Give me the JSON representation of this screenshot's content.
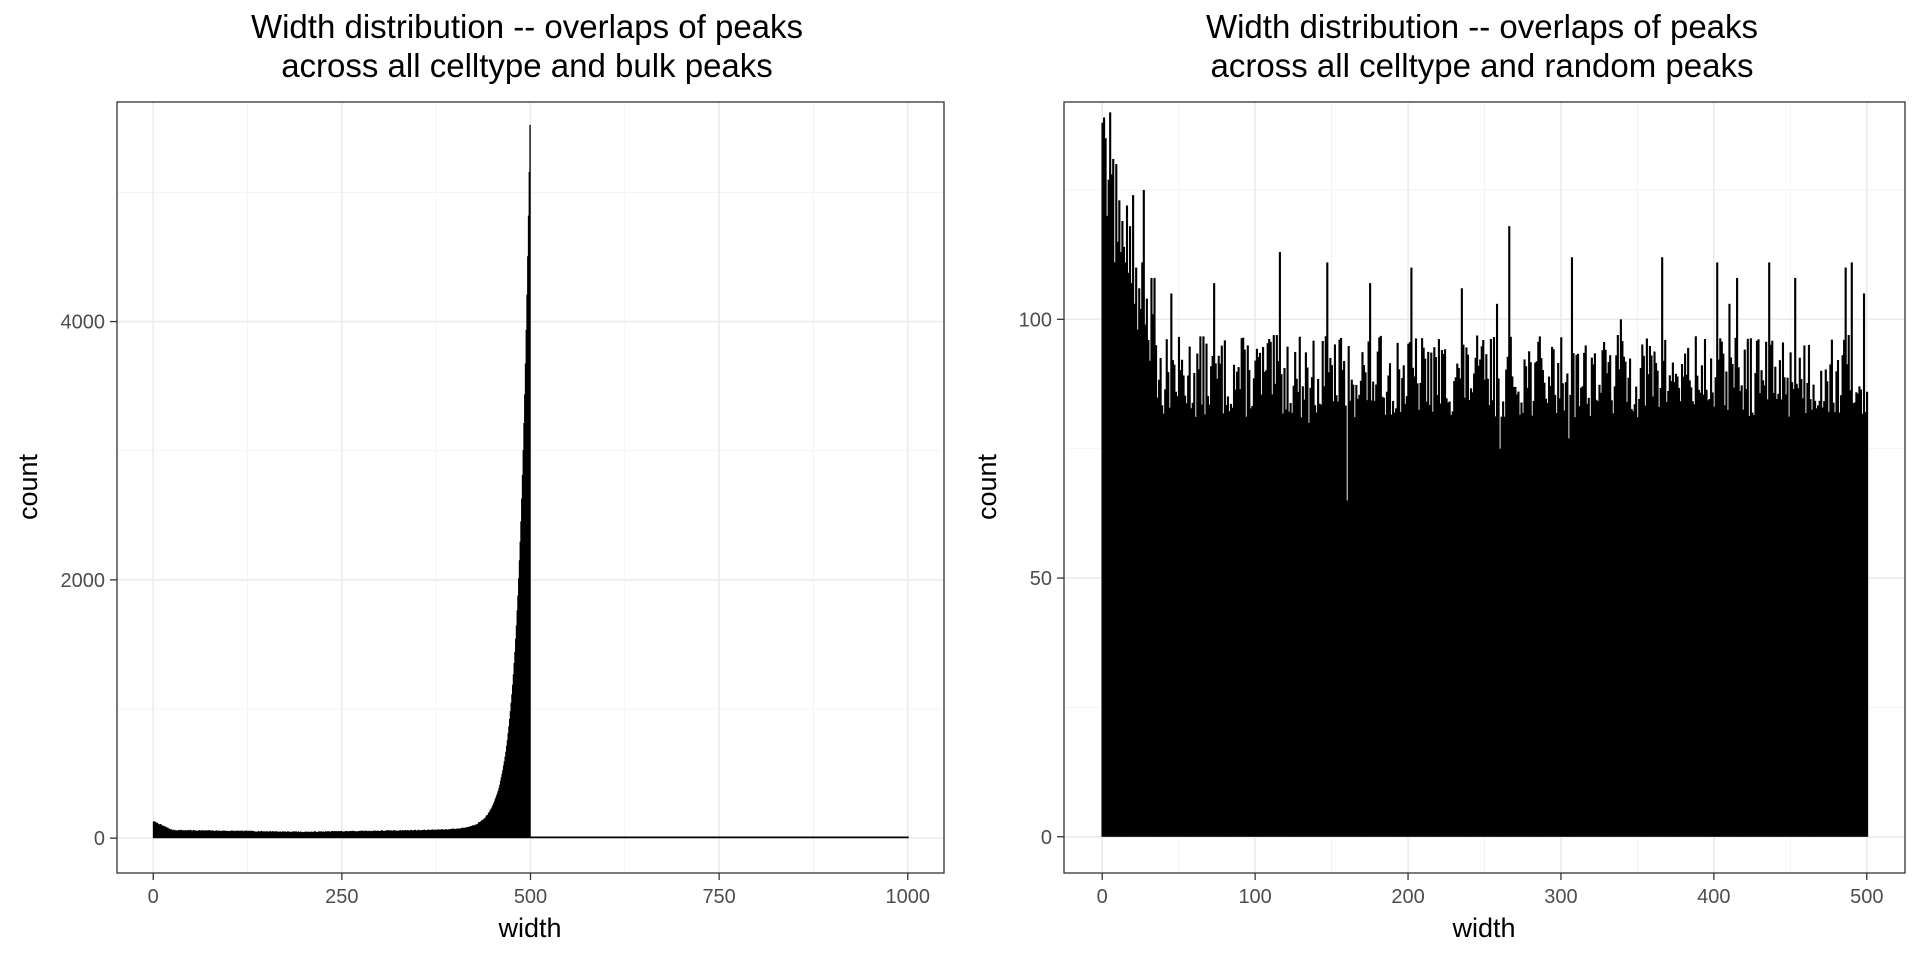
{
  "chart_data": [
    {
      "type": "bar",
      "title_lines": [
        "Width distribution  -- overlaps of peaks",
        "across all celltype and bulk peaks"
      ],
      "xlabel": "width",
      "ylabel": "count",
      "xlim": [
        -48,
        1048
      ],
      "ylim": [
        -270,
        5700
      ],
      "x_ticks": [
        0,
        250,
        500,
        750,
        1000
      ],
      "y_ticks": [
        0,
        2000,
        4000
      ],
      "bin_width": 1,
      "fill": "#000000",
      "segments": [
        {
          "x_start": 0,
          "x_end": 499,
          "profile": "decay_then_exp_rise",
          "start_count": 130,
          "baseline": 50,
          "peak_count": 5450
        }
      ],
      "tail_points": [
        {
          "x": 1000,
          "y": 8
        }
      ],
      "tail_range": [
        500,
        1000
      ],
      "tail_value": 4
    },
    {
      "type": "bar",
      "title_lines": [
        "Width distribution  -- overlaps of peaks",
        "across all celltype and random peaks"
      ],
      "xlabel": "width",
      "ylabel": "count",
      "xlim": [
        -25,
        525
      ],
      "ylim": [
        -7,
        142
      ],
      "x_ticks": [
        0,
        100,
        200,
        300,
        400,
        500
      ],
      "y_ticks": [
        0,
        50,
        100
      ],
      "bin_width": 1,
      "fill": "#000000",
      "head_values": [
        138,
        139,
        135,
        120,
        127,
        140,
        128,
        131,
        111,
        130,
        115,
        123,
        113,
        119,
        114,
        111,
        122,
        109,
        118,
        107,
        124,
        103,
        110,
        98,
        106,
        102,
        111,
        125,
        99,
        104,
        96,
        92,
        108,
        101,
        108,
        95
      ],
      "body_range": [
        36,
        501
      ],
      "body_mean": 89,
      "notable_peaks": [
        {
          "x": 45,
          "y": 105
        },
        {
          "x": 73,
          "y": 107
        },
        {
          "x": 116,
          "y": 113
        },
        {
          "x": 147,
          "y": 111
        },
        {
          "x": 175,
          "y": 107
        },
        {
          "x": 202,
          "y": 110
        },
        {
          "x": 235,
          "y": 106
        },
        {
          "x": 258,
          "y": 103
        },
        {
          "x": 266,
          "y": 118
        },
        {
          "x": 307,
          "y": 112
        },
        {
          "x": 339,
          "y": 100
        },
        {
          "x": 366,
          "y": 112
        },
        {
          "x": 402,
          "y": 111
        },
        {
          "x": 410,
          "y": 103
        },
        {
          "x": 415,
          "y": 108
        },
        {
          "x": 436,
          "y": 111
        },
        {
          "x": 453,
          "y": 108
        },
        {
          "x": 486,
          "y": 110
        },
        {
          "x": 490,
          "y": 111
        },
        {
          "x": 498,
          "y": 105
        }
      ],
      "notable_dips": [
        {
          "x": 135,
          "y": 80
        },
        {
          "x": 160,
          "y": 65
        },
        {
          "x": 260,
          "y": 75
        },
        {
          "x": 305,
          "y": 77
        }
      ],
      "tail_points": [
        {
          "x": 500,
          "y": 86
        }
      ]
    }
  ]
}
